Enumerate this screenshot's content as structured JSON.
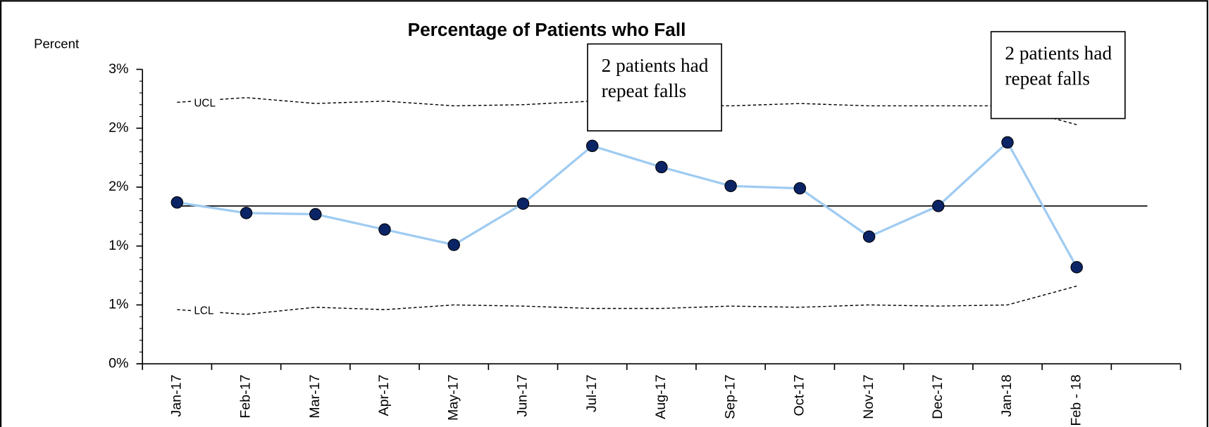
{
  "chart_data": {
    "type": "line",
    "title": "Percentage of Patients who Fall",
    "ylabel": "Percent",
    "categories": [
      "Jan-17",
      "Feb-17",
      "Mar-17",
      "Apr-17",
      "May-17",
      "Jun-17",
      "Jul-17",
      "Aug-17",
      "Sep-17",
      "Oct-17",
      "Nov-17",
      "Dec-17",
      "Jan-18",
      "Feb - 18",
      null
    ],
    "series": [
      {
        "name": "UCL",
        "color": "#000000",
        "values": [
          2.22,
          2.26,
          2.21,
          2.23,
          2.19,
          2.2,
          2.23,
          2.2,
          2.19,
          2.21,
          2.19,
          2.19,
          2.19,
          2.03,
          null
        ]
      },
      {
        "name": "LCL",
        "color": "#000000",
        "values": [
          0.46,
          0.42,
          0.48,
          0.46,
          0.5,
          0.49,
          0.47,
          0.47,
          0.49,
          0.48,
          0.5,
          0.49,
          0.5,
          0.66,
          null
        ]
      },
      {
        "color": "#9fcbf2",
        "marker_color": "#0b2466",
        "values": [
          1.37,
          1.28,
          1.27,
          1.14,
          1.01,
          1.36,
          1.85,
          1.67,
          1.51,
          1.49,
          1.08,
          1.34,
          1.88,
          0.82,
          null
        ]
      }
    ],
    "center_line": 1.34,
    "ylim": [
      0,
      2.5
    ],
    "yticks": [
      {
        "value": 0,
        "label": "0%"
      },
      {
        "value": 0.5,
        "label": "1%"
      },
      {
        "value": 1,
        "label": "1%"
      },
      {
        "value": 1.5,
        "label": "2%"
      },
      {
        "value": 2,
        "label": "2%"
      },
      {
        "value": 2.5,
        "label": "3%"
      }
    ],
    "annotations": [
      {
        "text": "2 patients had repeat falls",
        "category": 6
      },
      {
        "text": "2 patients had repeat falls",
        "category": 12
      }
    ]
  }
}
